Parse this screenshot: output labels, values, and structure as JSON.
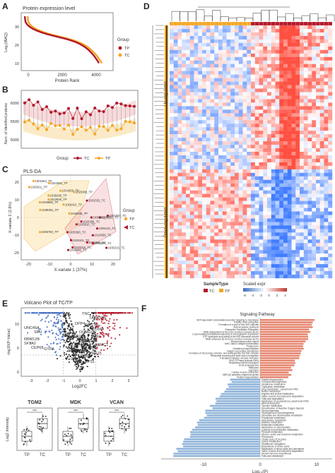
{
  "panels": {
    "A": {
      "letter": "A",
      "title": "Protein expression level",
      "ylabel": "Log₂(iBAQ)",
      "xlabel": "Protein Rank",
      "yticks": [
        "10",
        "20",
        "30"
      ],
      "xticks": [
        "0",
        "2000",
        "4000"
      ],
      "legend_title": "Group",
      "legend_items": [
        "TP",
        "TC"
      ]
    },
    "B": {
      "letter": "B",
      "ylabel": "Num. of identified proteins",
      "yticks": [
        "5000",
        "5500",
        "6000"
      ],
      "legend_title": "Group",
      "legend_items": [
        "TC",
        "TP"
      ]
    },
    "C": {
      "letter": "C",
      "title": "PLS-DA",
      "xlabel": "X-variate 1 (37%)",
      "ylabel": "X-variate 2 (2.8%)",
      "xticks": [
        "-20",
        "-10",
        "0",
        "10",
        "20"
      ],
      "yticks": [
        "-20",
        "-10",
        "0",
        "10",
        "20"
      ],
      "legend_title": "Group",
      "legend_items": [
        "TP",
        "TC"
      ],
      "labels": [
        "1001553_TP",
        "1022928_TP",
        "1025611_TP",
        "1014629_TP",
        "1020389_TP",
        "1038289_TP",
        "1022926_TP",
        "1001553_TC",
        "1039688_TP",
        "1029410_TP",
        "1039381_TP",
        "1040935_TP",
        "1001557_TC",
        "1005750_TC",
        "1038289_TC",
        "1020369_TC",
        "1035810_TC",
        "1035120_TC",
        "1005750_TP",
        "1035390_TC",
        "1014659_TC",
        "1029101_TC",
        "1035310_TC",
        "1036520_TC",
        "1033315_TC",
        "1035315_TC",
        "1039390_TC"
      ]
    },
    "D": {
      "letter": "D",
      "up_label": "Up-regulated",
      "down_label": "Down-regulated",
      "legend_sample_title": "SampleType",
      "legend_sample_items": [
        "TC",
        "TP"
      ],
      "legend_expr_title": "Scaled expr",
      "legend_expr_ticks": [
        "-6",
        "-4",
        "-2",
        "0",
        "2",
        "4"
      ]
    },
    "E": {
      "letter": "E",
      "title": "Volcano Plot of TC/TP",
      "xlabel": "Log2FC",
      "ylabel": "-log10(P-Value)",
      "xticks": [
        "-3",
        "-2",
        "-1",
        "0",
        "1",
        "2",
        "3"
      ],
      "yticks": [
        "0",
        "5",
        "10"
      ],
      "up_genes": [
        "TNC",
        "TACSTD2",
        "DPP4",
        "POSTN",
        "COMP",
        "OCIAD2",
        "FN1",
        "RAB27A",
        "HMGA2",
        "ARMC1",
        "C1QTNF5",
        "CDH11",
        "SERPINH1",
        "PRR15",
        "ERBB2",
        "CD47",
        "NTS1"
      ],
      "down_genes": [
        "UNC45A",
        "SFN",
        "RBM12B",
        "SF3A2",
        "CEP68",
        "GYPA"
      ]
    },
    "E_box": {
      "genes": [
        "TGM2",
        "MDK",
        "VCAN"
      ],
      "ylabel": "Log2 Intensity",
      "groups": [
        "TP",
        "TC"
      ],
      "sig": "***"
    },
    "F": {
      "letter": "F",
      "title": "Signaling Pathway",
      "xlabel": "Log₁₀(P)",
      "xticks": [
        "-10",
        "0",
        "10"
      ],
      "up_terms": [
        "SRP-dependent cotranslational protein targeting to membrane",
        "Peptide chain elongation",
        "Formation of a pool of free 40S subunits",
        "Selenocysteine synthesis",
        "Eukaryotic Translation Elongation",
        "NMD independent of the Exon Junction Complex (EJC)",
        "L13a-mediated translational silencing of Ceruloplasmin expression",
        "GTP hydrolysis and joining of the 60S ribosomal subunit",
        "NMD enhanced by the Exon Junction Complex (EJC)",
        "Mitochondrial protein import",
        "MHC class II antigen presentation",
        "Phagosome",
        "Oxidative phosphorylation",
        "Integrin cell surface interactions",
        "Formation of the ternary complex, and subsequently, the 43S complex",
        "Ribosomal scanning and start codon recognition",
        "Translation initiation complex formation",
        "RHO GTPases activate PAKs",
        "Respiratory electron transport",
        "ECM proteoglycans",
        "Ribosome",
        "Lysosome",
        "Cardiac muscle contraction",
        "XBP1(S) activates chaperone genes",
        "Platelet degranulation"
      ],
      "down_terms": [
        "Platelet degranulation",
        "Chemical carcinogenesis",
        "Glutathione metabolism",
        "Tryptophan metabolism",
        "Drug metabolism - cytochrome P450",
        "Retinol metabolism",
        "Arginine and proline metabolism",
        "Valine, leucine and isoleucine degradation",
        "Fatty acid degradation",
        "Metabolism of xenobiotics by cytochrome P450",
        "Mineral absorption",
        "Tyrosine metabolism",
        "Detoxification of Reactive Oxygen Species",
        "Gluconeogenesis",
        "Glycolysis and Gluconeogenesis",
        "Glyoxylate and dicarboxylate metabolism",
        "Propanoate metabolism",
        "beta-Alanine metabolism",
        "Histidine metabolism",
        "Butanoate metabolism",
        "Metabolism of carbohydrates",
        "Cysteine and methionine metabolism",
        "Pyruvate metabolism",
        "Glycine, serine and threonine metabolism",
        "Peroxisome",
        "Citrate cycle (TCA cycle)",
        "Carbon metabolism",
        "Glutathione conjugation",
        "Biosynthesis of amino acids",
        "Metabolism of amino acids and derivatives",
        "Valine, leucine and isoleucine degradation",
        "Steroid hormone biosynthesis",
        "Fatty acid metabolism"
      ]
    }
  },
  "colors": {
    "tc": "#b2182b",
    "tp": "#f5a623",
    "blue": "#4a72c4",
    "grey": "#bdbdbd",
    "heat_hi": "#c0392b",
    "heat_lo": "#3b7fc4"
  }
}
